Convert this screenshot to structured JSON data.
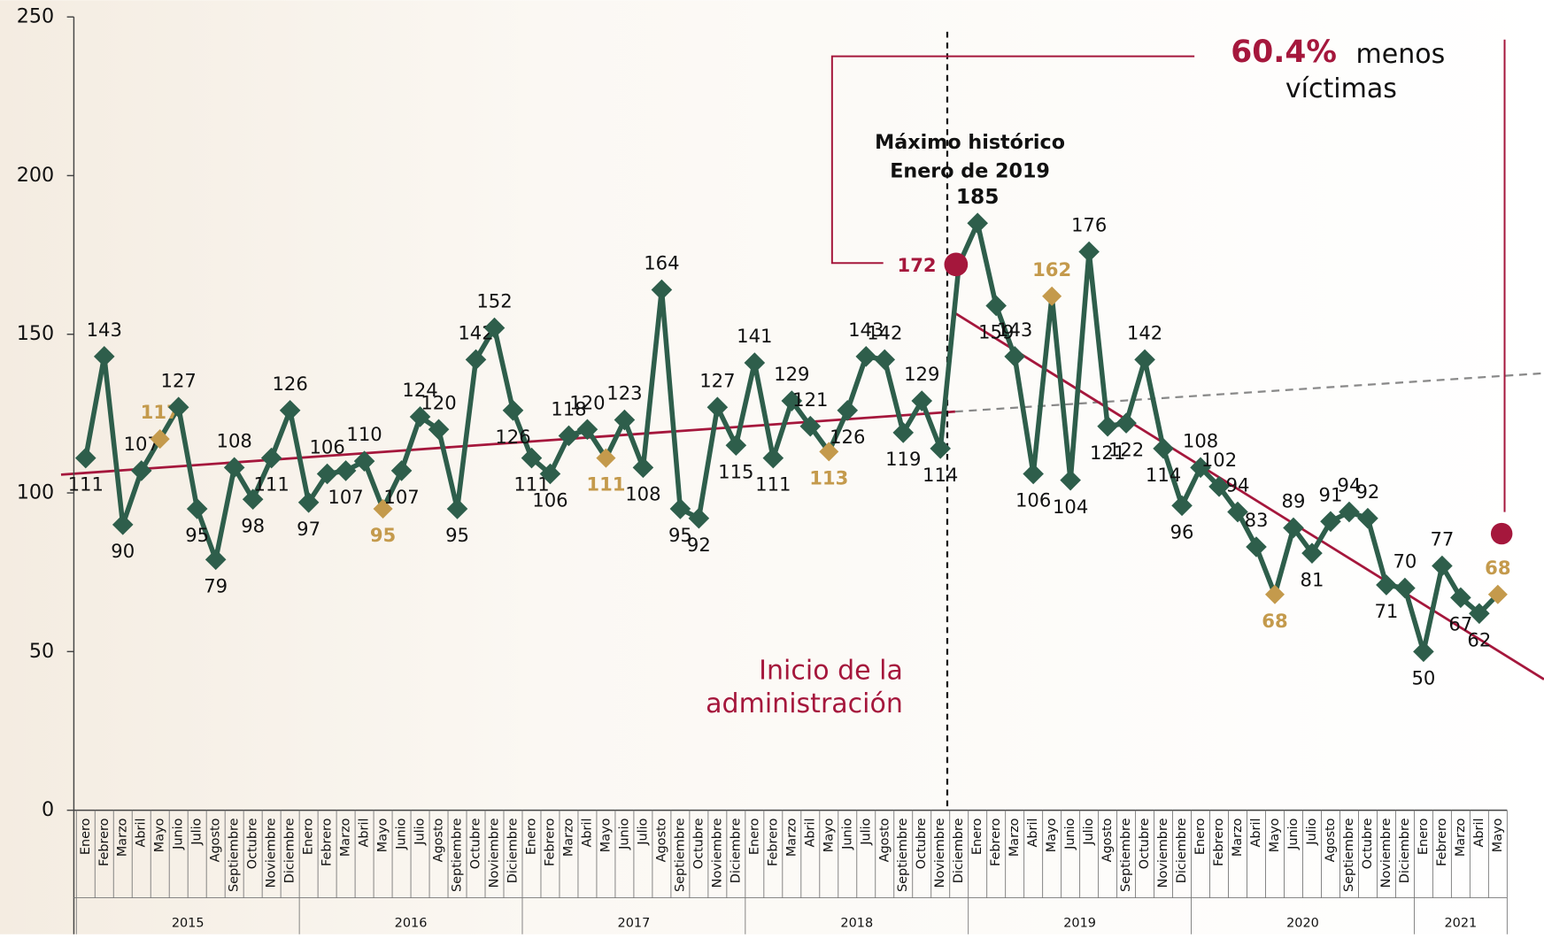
{
  "chart_data": {
    "type": "line",
    "categories": [
      "Enero",
      "Febrero",
      "Marzo",
      "Abril",
      "Mayo",
      "Junio",
      "Julio",
      "Agosto",
      "Septiembre",
      "Octubre",
      "Noviembre",
      "Diciembre",
      "Enero",
      "Febrero",
      "Marzo",
      "Abril",
      "Mayo",
      "Junio",
      "Julio",
      "Agosto",
      "Septiembre",
      "Octubre",
      "Noviembre",
      "Diciembre",
      "Enero",
      "Febrero",
      "Marzo",
      "Abril",
      "Mayo",
      "Junio",
      "Julio",
      "Agosto",
      "Septiembre",
      "Octubre",
      "Noviembre",
      "Diciembre",
      "Enero",
      "Febrero",
      "Marzo",
      "Abril",
      "Mayo",
      "Junio",
      "Julio",
      "Agosto",
      "Septiembre",
      "Octubre",
      "Noviembre",
      "Diciembre",
      "Enero",
      "Febrero",
      "Marzo",
      "Abril",
      "Mayo",
      "Junio",
      "Julio",
      "Agosto",
      "Septiembre",
      "Octubre",
      "Noviembre",
      "Diciembre",
      "Enero",
      "Febrero",
      "Marzo",
      "Abril",
      "Mayo",
      "Junio",
      "Julio",
      "Agosto",
      "Septiembre",
      "Octubre",
      "Noviembre",
      "Diciembre",
      "Enero",
      "Febrero",
      "Marzo",
      "Abril",
      "Mayo"
    ],
    "years": [
      "2015",
      "2016",
      "2017",
      "2018",
      "2019",
      "2020",
      "2021"
    ],
    "values": [
      111,
      143,
      90,
      107,
      117,
      127,
      95,
      79,
      108,
      98,
      111,
      126,
      97,
      106,
      107,
      110,
      95,
      107,
      124,
      120,
      95,
      142,
      152,
      126,
      111,
      106,
      118,
      120,
      111,
      123,
      108,
      164,
      95,
      92,
      127,
      115,
      141,
      111,
      129,
      121,
      113,
      126,
      143,
      142,
      119,
      129,
      114,
      172,
      185,
      159,
      143,
      106,
      162,
      104,
      176,
      121,
      122,
      142,
      114,
      96,
      108,
      102,
      94,
      83,
      68,
      89,
      81,
      91,
      94,
      92,
      71,
      70,
      50,
      77,
      67,
      62,
      68
    ],
    "color": "#2e5e4b",
    "highlight_category": "Mayo",
    "highlight_color": "#c49a4c",
    "accent_color": "#a5173c",
    "ylim": [
      0,
      250
    ],
    "yticks": [
      0,
      50,
      100,
      150,
      200,
      250
    ],
    "max_note": [
      "Máximo histórico",
      "Enero de 2019"
    ],
    "reduction": {
      "value": "60.4%",
      "text": [
        "menos",
        "víctimas"
      ]
    },
    "start_note": [
      "Inicio de la",
      "administración"
    ]
  }
}
